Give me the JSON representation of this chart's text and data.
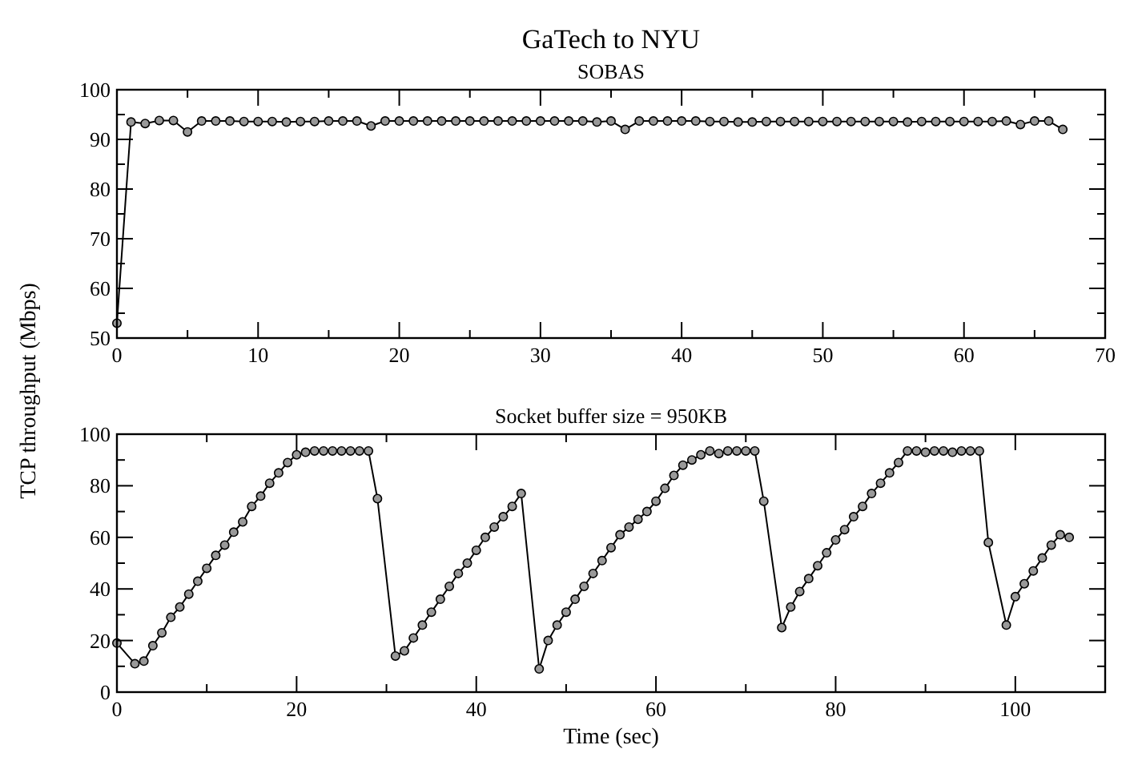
{
  "chart_data": [
    {
      "type": "line",
      "title": "GaTech to NYU",
      "subtitle": "SOBAS",
      "marker": "circle",
      "grid": false,
      "xlim": [
        0,
        70
      ],
      "xticks": [
        0,
        10,
        20,
        30,
        40,
        50,
        60,
        70
      ],
      "ylim": [
        50,
        100
      ],
      "yticks": [
        50,
        60,
        70,
        80,
        90,
        100
      ],
      "x": [
        0,
        1,
        2,
        3,
        4,
        5,
        6,
        7,
        8,
        9,
        10,
        11,
        12,
        13,
        14,
        15,
        16,
        17,
        18,
        19,
        20,
        21,
        22,
        23,
        24,
        25,
        26,
        27,
        28,
        29,
        30,
        31,
        32,
        33,
        34,
        35,
        36,
        37,
        38,
        39,
        40,
        41,
        42,
        43,
        44,
        45,
        46,
        47,
        48,
        49,
        50,
        51,
        52,
        53,
        54,
        55,
        56,
        57,
        58,
        59,
        60,
        61,
        62,
        63,
        64,
        65,
        66,
        67
      ],
      "series": [
        {
          "color": "#000000",
          "values": [
            53,
            93.5,
            93.2,
            93.8,
            93.8,
            91.5,
            93.7,
            93.7,
            93.7,
            93.6,
            93.6,
            93.6,
            93.5,
            93.6,
            93.6,
            93.7,
            93.7,
            93.7,
            92.7,
            93.7,
            93.7,
            93.7,
            93.7,
            93.7,
            93.7,
            93.7,
            93.7,
            93.7,
            93.7,
            93.7,
            93.7,
            93.7,
            93.7,
            93.7,
            93.5,
            93.7,
            92,
            93.7,
            93.7,
            93.7,
            93.7,
            93.7,
            93.6,
            93.6,
            93.5,
            93.5,
            93.6,
            93.6,
            93.6,
            93.6,
            93.6,
            93.6,
            93.6,
            93.6,
            93.6,
            93.6,
            93.5,
            93.6,
            93.6,
            93.6,
            93.6,
            93.6,
            93.6,
            93.7,
            93,
            93.7,
            93.7,
            92
          ]
        }
      ]
    },
    {
      "type": "line",
      "title": "Socket buffer size = 950KB",
      "xlabel": "Time (sec)",
      "ylabel": "TCP throughput (Mbps)",
      "marker": "circle",
      "grid": false,
      "xlim": [
        0,
        110
      ],
      "xticks": [
        0,
        20,
        40,
        60,
        80,
        100
      ],
      "ylim": [
        0,
        100
      ],
      "yticks": [
        0,
        20,
        40,
        60,
        80,
        100
      ],
      "x": [
        0,
        2,
        3,
        4,
        5,
        6,
        7,
        8,
        9,
        10,
        11,
        12,
        13,
        14,
        15,
        16,
        17,
        18,
        19,
        20,
        21,
        22,
        23,
        24,
        25,
        26,
        27,
        28,
        29,
        31,
        32,
        33,
        34,
        35,
        36,
        37,
        38,
        39,
        40,
        41,
        42,
        43,
        44,
        45,
        47,
        48,
        49,
        50,
        51,
        52,
        53,
        54,
        55,
        56,
        57,
        58,
        59,
        60,
        61,
        62,
        63,
        64,
        65,
        66,
        67,
        68,
        69,
        70,
        71,
        72,
        74,
        75,
        76,
        77,
        78,
        79,
        80,
        81,
        82,
        83,
        84,
        85,
        86,
        87,
        88,
        89,
        90,
        91,
        92,
        93,
        94,
        95,
        96,
        97,
        99,
        100,
        101,
        102,
        103,
        104,
        105,
        106
      ],
      "series": [
        {
          "color": "#000000",
          "values": [
            19,
            11,
            12,
            18,
            23,
            29,
            33,
            38,
            43,
            48,
            53,
            57,
            62,
            66,
            72,
            76,
            81,
            85,
            89,
            92,
            93,
            93.5,
            93.5,
            93.5,
            93.5,
            93.5,
            93.5,
            93.5,
            75,
            14,
            16,
            21,
            26,
            31,
            36,
            41,
            46,
            50,
            55,
            60,
            64,
            68,
            72,
            77,
            9,
            20,
            26,
            31,
            36,
            41,
            46,
            51,
            56,
            61,
            64,
            67,
            70,
            74,
            79,
            84,
            88,
            90,
            92,
            93.5,
            92.5,
            93.5,
            93.5,
            93.5,
            93.5,
            74,
            25,
            33,
            39,
            44,
            49,
            54,
            59,
            63,
            68,
            72,
            77,
            81,
            85,
            89,
            93.5,
            93.5,
            93,
            93.5,
            93.5,
            93,
            93.5,
            93.5,
            93.5,
            58,
            26,
            37,
            42,
            47,
            52,
            57,
            61,
            60
          ]
        }
      ]
    }
  ]
}
